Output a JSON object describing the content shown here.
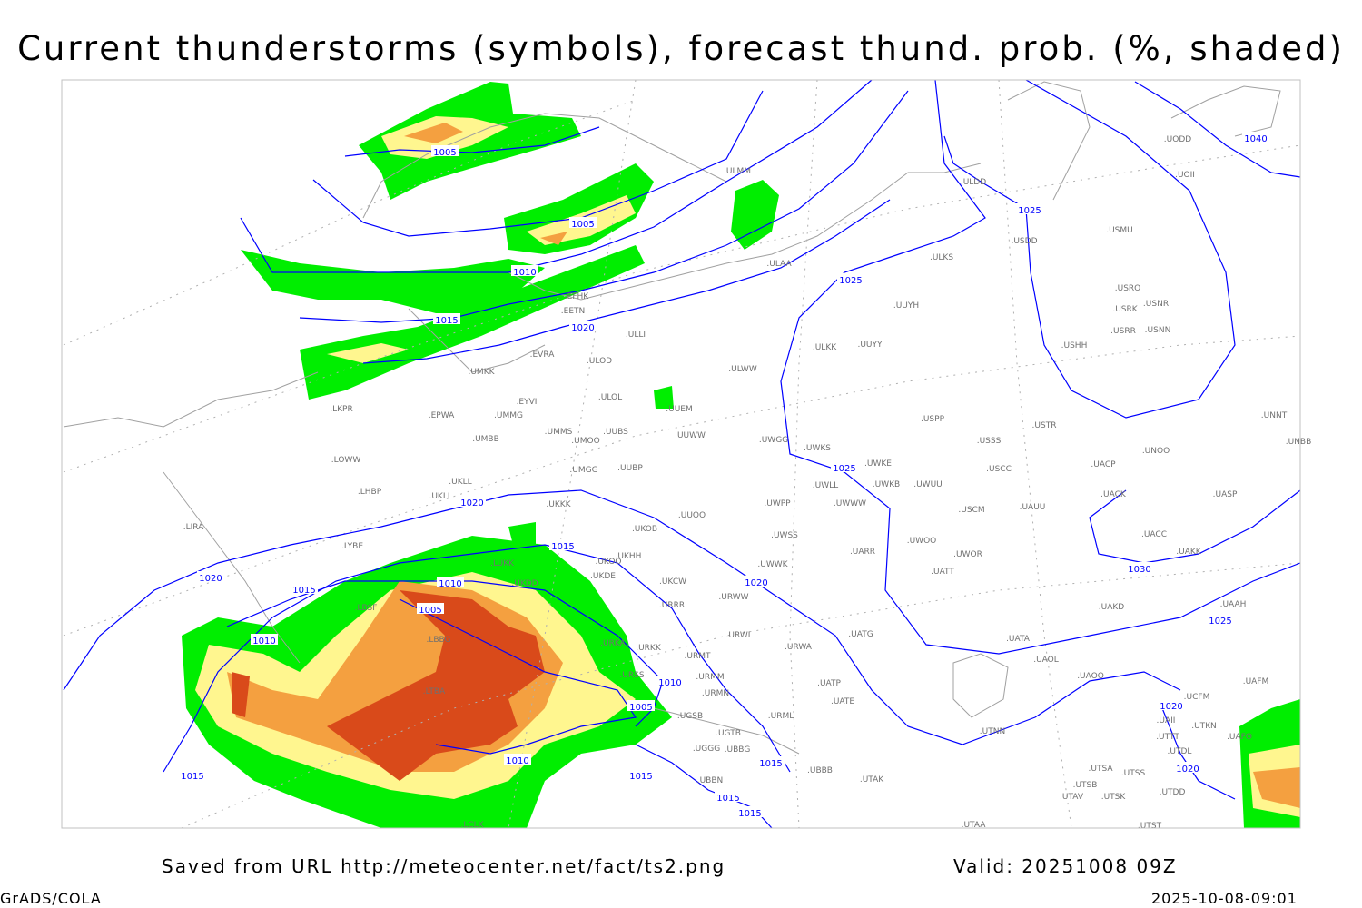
{
  "title": "Current thunderstorms (symbols), forecast thund. prob. (%, shaded)",
  "footer": {
    "source": "Saved from URL http://meteocenter.net/fact/ts2.png",
    "valid": "Valid: 20251008 09Z",
    "software": "GrADS/COLA",
    "timestamp": "2025-10-08-09:01"
  },
  "colors": {
    "isobar": "#0000ff",
    "coastline": "#a0a0a0",
    "prob_low": "#00ee00",
    "prob_mid": "#fff68f",
    "prob_high": "#f4a040",
    "prob_max": "#d94a1a"
  },
  "isobar_labels": [
    "1005",
    "1005",
    "1010",
    "1015",
    "1020",
    "1025",
    "1025",
    "1040",
    "1025",
    "1020",
    "1015",
    "1010",
    "1005",
    "1015",
    "1020",
    "1010",
    "1020",
    "1010",
    "1005",
    "1010",
    "1015",
    "1015",
    "1015",
    "1015",
    "1015",
    "1030",
    "1025",
    "1020",
    "1020"
  ],
  "stations": [
    "ULMM",
    "ULDD",
    "UODD",
    "UOII",
    "USMU",
    "USDD",
    "ULAA",
    "ULKS",
    "USRO",
    "USRK",
    "USNR",
    "USRR",
    "USNN",
    "USHH",
    "UUYH",
    "EFHK",
    "EETN",
    "ULLI",
    "EVRA",
    "ULOD",
    "ULKK",
    "UUYY",
    "ULWW",
    "UMKK",
    "ULOL",
    "EYVI",
    "UUEM",
    "LKPR",
    "EPWA",
    "UMMG",
    "USPP",
    "USTR",
    "UNNT",
    "UNBB",
    "UMMS",
    "UUBS",
    "UMOO",
    "UUWW",
    "UWGG",
    "USSS",
    "UNOO",
    "UMBB",
    "UWKS",
    "LOWW",
    "UWKE",
    "UACP",
    "UMGG",
    "UUBP",
    "USCC",
    "UWKB",
    "UWUU",
    "UWLL",
    "UKLL",
    "LHBP",
    "UWWW",
    "UACK",
    "UASP",
    "UKLI",
    "UKKK",
    "UWPP",
    "USCM",
    "UAUU",
    "UUOO",
    "UKOB",
    "LIRA",
    "UWSS",
    "UACC",
    "LYBE",
    "UWOO",
    "UKHH",
    "UAKK",
    "UARR",
    "UWOR",
    "UKOO",
    "UWWK",
    "LUKK",
    "UKDE",
    "UATT",
    "UKCW",
    "UKDD",
    "URWW",
    "LBSF",
    "URRR",
    "UAKD",
    "UAAH",
    "LBBG",
    "URWI",
    "UATG",
    "UATA",
    "URKA",
    "URKK",
    "URWA",
    "URMT",
    "UAOL",
    "URMM",
    "UAOO",
    "UAFM",
    "URSS",
    "UATP",
    "URMN",
    "LTBA",
    "UATE",
    "UAII",
    "UCFM",
    "URML",
    "UGSB",
    "UGTB",
    "UTNN",
    "UTKN",
    "UAFO",
    "UTTT",
    "UGGG",
    "UBBG",
    "UTDL",
    "UBBB",
    "UTSA",
    "UTSS",
    "UTSB",
    "UTAK",
    "UBBN",
    "UTAV",
    "UTSK",
    "UTDD",
    "LCLK",
    "UTAA",
    "UTST"
  ]
}
